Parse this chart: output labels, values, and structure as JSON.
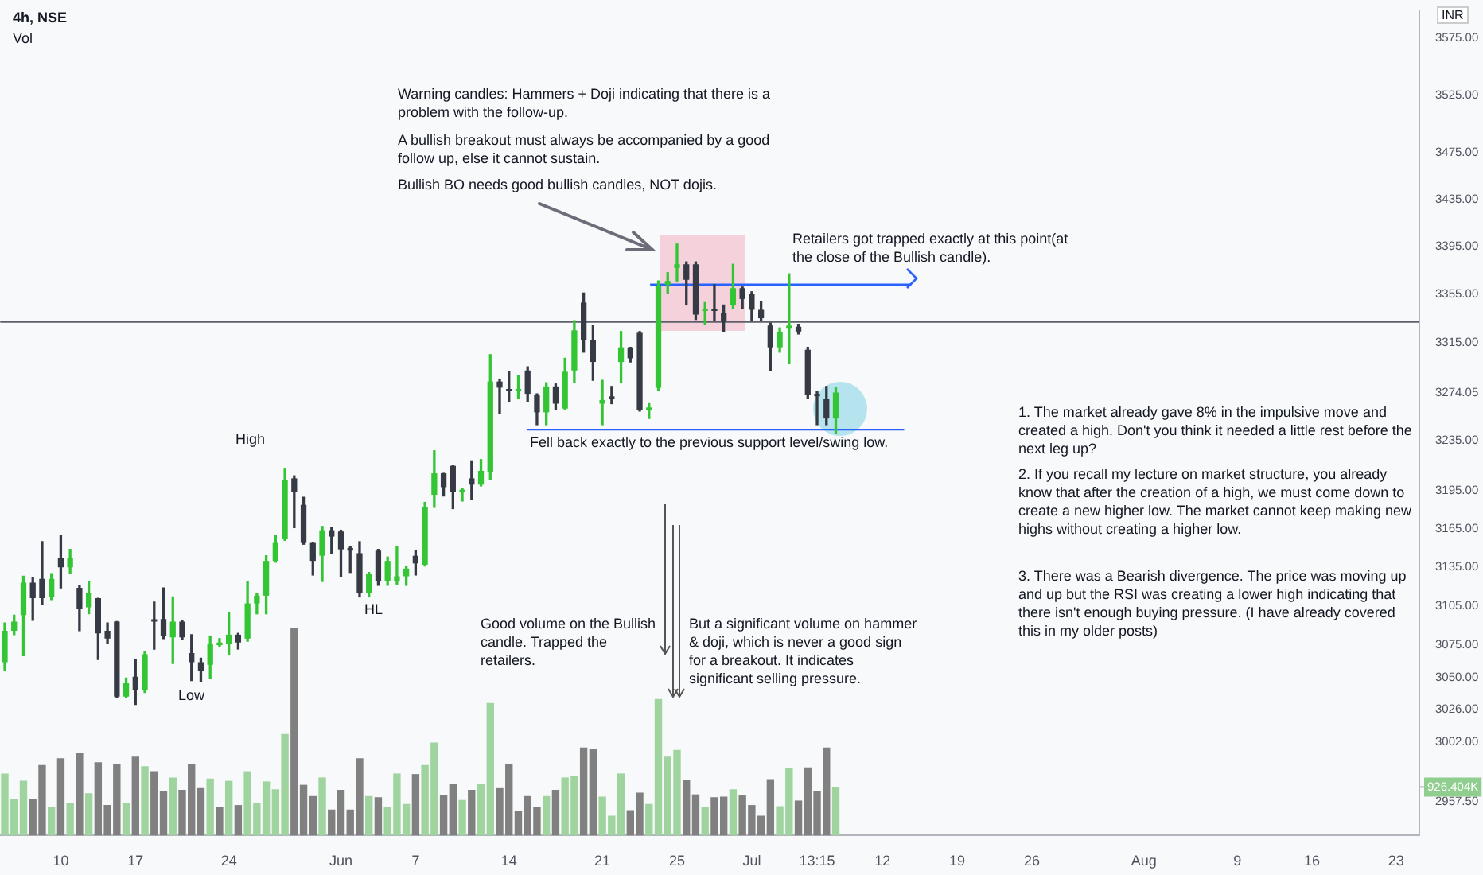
{
  "chart_data": {
    "type": "candlestick",
    "title": "4h, NSE",
    "subtitle": "Vol",
    "ylabel": "INR",
    "categories": [
      null,
      null,
      null,
      null,
      null,
      null,
      "10",
      null,
      null,
      null,
      null,
      null,
      null,
      null,
      "17",
      null,
      null,
      null,
      null,
      null,
      null,
      null,
      null,
      null,
      "24",
      null,
      null,
      null,
      null,
      null,
      null,
      null,
      null,
      null,
      null,
      null,
      "Jun",
      null,
      null,
      null,
      null,
      null,
      null,
      null,
      "7",
      null,
      null,
      null,
      null,
      null,
      null,
      null,
      null,
      null,
      "14",
      null,
      null,
      null,
      null,
      null,
      null,
      null,
      null,
      null,
      "21",
      null,
      null,
      null,
      null,
      null,
      null,
      null,
      "25",
      null,
      null,
      null,
      null,
      null,
      null,
      null,
      "Jul",
      null,
      null,
      null,
      null,
      null,
      null,
      "13:15",
      null,
      null,
      null,
      null,
      null,
      null,
      "12",
      null,
      null,
      null,
      null,
      null,
      null,
      null,
      "19",
      null,
      null,
      null,
      null,
      null,
      null,
      null,
      "26",
      null,
      null,
      null,
      null,
      null,
      null,
      null,
      null,
      null,
      null,
      null,
      "Aug",
      null,
      null,
      null,
      null,
      null,
      null,
      null,
      null,
      null,
      "9",
      null,
      null,
      null,
      null,
      null,
      null,
      null,
      "16",
      null,
      null,
      null,
      null,
      null,
      null,
      null,
      null,
      "23",
      null,
      null
    ],
    "series": [
      {
        "type": "candlestick",
        "ohlc": [
          [
            3062,
            3092,
            3056,
            3086
          ],
          [
            3086,
            3098,
            3083,
            3093
          ],
          [
            3098,
            3128,
            3067,
            3123
          ],
          [
            3123,
            3127,
            3094,
            3111
          ],
          [
            3126,
            3155,
            3106,
            3111
          ],
          [
            3112,
            3130,
            3110,
            3126
          ],
          [
            3142,
            3160,
            3119,
            3135
          ],
          [
            3135,
            3149,
            3130,
            3142
          ],
          [
            3119,
            3121,
            3086,
            3103
          ],
          [
            3104,
            3124,
            3099,
            3115
          ],
          [
            3111,
            3111,
            3064,
            3084
          ],
          [
            3086,
            3092,
            3076,
            3080
          ],
          [
            3093,
            3093,
            3035,
            3036
          ],
          [
            3036,
            3050,
            3035,
            3046
          ],
          [
            3051,
            3064,
            3030,
            3041
          ],
          [
            3041,
            3070,
            3039,
            3068
          ],
          [
            3094,
            3108,
            3072,
            3093
          ],
          [
            3095,
            3119,
            3080,
            3082
          ],
          [
            3081,
            3112,
            3061,
            3093
          ],
          [
            3093,
            3094,
            3079,
            3081
          ],
          [
            3069,
            3083,
            3048,
            3062
          ],
          [
            3062,
            3065,
            3047,
            3055
          ],
          [
            3060,
            3082,
            3050,
            3076
          ],
          [
            3075,
            3080,
            3074,
            3077
          ],
          [
            3076,
            3100,
            3068,
            3083
          ],
          [
            3083,
            3084,
            3072,
            3077
          ],
          [
            3080,
            3124,
            3078,
            3107
          ],
          [
            3107,
            3115,
            3099,
            3113
          ],
          [
            3113,
            3144,
            3099,
            3140
          ],
          [
            3140,
            3160,
            3139,
            3154
          ],
          [
            3157,
            3213,
            3156,
            3204
          ],
          [
            3205,
            3207,
            3166,
            3194
          ],
          [
            3184,
            3190,
            3153,
            3154
          ],
          [
            3154,
            3154,
            3129,
            3140
          ],
          [
            3144,
            3167,
            3124,
            3164
          ],
          [
            3164,
            3166,
            3146,
            3159
          ],
          [
            3163,
            3164,
            3128,
            3149
          ],
          [
            3150,
            3151,
            3131,
            3148
          ],
          [
            3146,
            3155,
            3112,
            3115
          ],
          [
            3115,
            3131,
            3112,
            3130
          ],
          [
            3148,
            3149,
            3121,
            3124
          ],
          [
            3124,
            3143,
            3121,
            3140
          ],
          [
            3124,
            3151,
            3122,
            3128
          ],
          [
            3128,
            3136,
            3121,
            3134
          ],
          [
            3144,
            3148,
            3129,
            3138
          ],
          [
            3137,
            3186,
            3136,
            3182
          ],
          [
            3192,
            3227,
            3182,
            3209
          ],
          [
            3209,
            3209,
            3191,
            3198
          ],
          [
            3215,
            3215,
            3181,
            3194
          ],
          [
            3194,
            3197,
            3187,
            3196
          ],
          [
            3205,
            3219,
            3188,
            3200
          ],
          [
            3200,
            3220,
            3199,
            3211
          ],
          [
            3210,
            3305,
            3204,
            3283
          ],
          [
            3283,
            3285,
            3257,
            3278
          ],
          [
            3276,
            3291,
            3267,
            3275
          ],
          [
            3275,
            3288,
            3269,
            3276
          ],
          [
            3292,
            3295,
            3267,
            3273
          ],
          [
            3272,
            3273,
            3248,
            3258
          ],
          [
            3258,
            3282,
            3248,
            3279
          ],
          [
            3279,
            3281,
            3260,
            3265
          ],
          [
            3261,
            3302,
            3260,
            3291
          ],
          [
            3292,
            3333,
            3282,
            3325
          ],
          [
            3348,
            3356,
            3307,
            3317
          ],
          [
            3317,
            3329,
            3284,
            3299
          ],
          [
            3265,
            3284,
            3248,
            3268
          ],
          [
            3270,
            3279,
            3265,
            3269
          ],
          [
            3299,
            3324,
            3282,
            3311
          ],
          [
            3311,
            3311,
            3299,
            3302
          ],
          [
            3323,
            3324,
            3259,
            3260
          ],
          [
            3260,
            3265,
            3253,
            3261
          ],
          [
            3278,
            3366,
            3276,
            3362
          ],
          [
            3363,
            3373,
            3356,
            3366
          ],
          [
            3377,
            3397,
            3366,
            3380
          ],
          [
            3380,
            3382,
            3346,
            3367
          ],
          [
            3380,
            3382,
            3334,
            3338
          ],
          [
            3341,
            3348,
            3330,
            3342
          ],
          [
            3342,
            3363,
            3333,
            3341
          ],
          [
            3339,
            3346,
            3324,
            3333
          ],
          [
            3346,
            3380,
            3343,
            3360
          ],
          [
            3360,
            3361,
            3343,
            3351
          ],
          [
            3355,
            3357,
            3333,
            3342
          ],
          [
            3342,
            3349,
            3333,
            3335
          ],
          [
            3329,
            3331,
            3292,
            3311
          ],
          [
            3311,
            3327,
            3307,
            3324
          ],
          [
            3327,
            3372,
            3298,
            3328
          ],
          [
            3328,
            3330,
            3322,
            3324
          ],
          [
            3309,
            3311,
            3269,
            3272
          ],
          [
            3273,
            3275,
            3248,
            3271
          ],
          [
            3269,
            3279,
            3248,
            3253
          ],
          [
            3253,
            3278,
            3241,
            3274.05
          ],
          null,
          null,
          null,
          null,
          null,
          null,
          null,
          null,
          null,
          null,
          null,
          null,
          null,
          null,
          null,
          null,
          null,
          null,
          null,
          null,
          null,
          null,
          null,
          null,
          null,
          null,
          null,
          null,
          null,
          null,
          null,
          null,
          null,
          null,
          null,
          null,
          null,
          null,
          null,
          null,
          null,
          null,
          null,
          null,
          null,
          null,
          null,
          null,
          null,
          null,
          null,
          null,
          null,
          null,
          null,
          null,
          null,
          null,
          null,
          null,
          null,
          null
        ],
        "colors": [
          "#33c533",
          "#33c533",
          "#33c533",
          "#363a45",
          "#363a45",
          "#33c533",
          "#363a45",
          "#33c533",
          "#363a45",
          "#33c533",
          "#363a45",
          "#363a45",
          "#363a45",
          "#33c533",
          "#363a45",
          "#33c533",
          "#363a45",
          "#363a45",
          "#33c533",
          "#363a45",
          "#363a45",
          "#363a45",
          "#33c533",
          "#33c533",
          "#33c533",
          "#363a45",
          "#33c533",
          "#33c533",
          "#33c533",
          "#33c533",
          "#33c533",
          "#363a45",
          "#363a45",
          "#363a45",
          "#33c533",
          "#363a45",
          "#363a45",
          "#363a45",
          "#363a45",
          "#33c533",
          "#363a45",
          "#33c533",
          "#33c533",
          "#33c533",
          "#363a45",
          "#33c533",
          "#33c533",
          "#363a45",
          "#363a45",
          "#33c533",
          "#363a45",
          "#33c533",
          "#33c533",
          "#363a45",
          "#363a45",
          "#33c533",
          "#363a45",
          "#363a45",
          "#33c533",
          "#363a45",
          "#33c533",
          "#33c533",
          "#363a45",
          "#363a45",
          "#33c533",
          "#363a45",
          "#33c533",
          "#363a45",
          "#363a45",
          "#33c533",
          "#33c533",
          "#33c533",
          "#33c533",
          "#363a45",
          "#363a45",
          "#33c533",
          "#363a45",
          "#363a45",
          "#33c533",
          "#363a45",
          "#363a45",
          "#363a45",
          "#363a45",
          "#33c533",
          "#33c533",
          "#363a45",
          "#363a45",
          "#363a45",
          "#363a45",
          "#33c533",
          null,
          null,
          null,
          null,
          null,
          null,
          null,
          null,
          null,
          null,
          null,
          null,
          null,
          null,
          null,
          null,
          null,
          null,
          null,
          null,
          null,
          null,
          null,
          null,
          null,
          null,
          null,
          null,
          null,
          null,
          null,
          null,
          null,
          null,
          null,
          null,
          null,
          null,
          null,
          null,
          null,
          null,
          null,
          null,
          null,
          null,
          null,
          null,
          null,
          null,
          null,
          null,
          null,
          null,
          null,
          null,
          null,
          null,
          null,
          null,
          null,
          null
        ]
      },
      {
        "type": "bar",
        "axis": "y2",
        "values": [
          1185,
          700,
          1045,
          700,
          1346,
          539,
          1476,
          625,
          1572,
          808,
          1400,
          582,
          1368,
          625,
          1508,
          1325,
          1228,
          851,
          1109,
          872,
          1357,
          905,
          1088,
          539,
          1045,
          582,
          1228,
          614,
          1034,
          883,
          1939,
          3963,
          969,
          754,
          1109,
          495,
          872,
          495,
          1476,
          754,
          732,
          539,
          1185,
          603,
          1174,
          1346,
          1777,
          775,
          991,
          679,
          872,
          991,
          2531,
          905,
          1368,
          463,
          754,
          539,
          754,
          872,
          1109,
          1142,
          1680,
          1659,
          743,
          377,
          1185,
          485,
          819,
          603,
          2606,
          1508,
          1637,
          1055,
          786,
          549,
          732,
          743,
          883,
          765,
          582,
          377,
          1077,
          560,
          1292,
          668,
          1303,
          851,
          1680,
          926.404,
          null,
          null,
          null,
          null,
          null,
          null,
          null,
          null,
          null,
          null,
          null,
          null,
          null,
          null,
          null,
          null,
          null,
          null,
          null,
          null,
          null,
          null,
          null,
          null,
          null,
          null,
          null,
          null,
          null,
          null,
          null,
          null,
          null,
          null,
          null,
          null,
          null,
          null,
          null,
          null,
          null,
          null,
          null,
          null,
          null,
          null,
          null,
          null,
          null,
          null,
          null,
          null,
          null,
          null,
          null,
          null,
          null,
          null,
          null,
          null,
          null,
          null
        ],
        "colors": [
          "#9fd49f",
          "#9fd49f",
          "#9fd49f",
          "#808080",
          "#808080",
          "#9fd49f",
          "#808080",
          "#9fd49f",
          "#808080",
          "#9fd49f",
          "#808080",
          "#808080",
          "#808080",
          "#9fd49f",
          "#808080",
          "#9fd49f",
          "#808080",
          "#808080",
          "#9fd49f",
          "#808080",
          "#808080",
          "#808080",
          "#9fd49f",
          "#808080",
          "#9fd49f",
          "#808080",
          "#9fd49f",
          "#9fd49f",
          "#9fd49f",
          "#9fd49f",
          "#9fd49f",
          "#808080",
          "#808080",
          "#808080",
          "#9fd49f",
          "#808080",
          "#808080",
          "#808080",
          "#808080",
          "#9fd49f",
          "#808080",
          "#9fd49f",
          "#9fd49f",
          "#9fd49f",
          "#808080",
          "#9fd49f",
          "#9fd49f",
          "#808080",
          "#808080",
          "#9fd49f",
          "#808080",
          "#9fd49f",
          "#9fd49f",
          "#808080",
          "#808080",
          "#808080",
          "#808080",
          "#808080",
          "#9fd49f",
          "#808080",
          "#9fd49f",
          "#9fd49f",
          "#808080",
          "#808080",
          "#9fd49f",
          "#9fd49f",
          "#9fd49f",
          "#808080",
          "#808080",
          "#9fd49f",
          "#9fd49f",
          "#9fd49f",
          "#9fd49f",
          "#808080",
          "#808080",
          "#9fd49f",
          "#808080",
          "#808080",
          "#9fd49f",
          "#808080",
          "#808080",
          "#808080",
          "#808080",
          "#9fd49f",
          "#9fd49f",
          "#808080",
          "#808080",
          "#808080",
          "#808080",
          "#9fd49f",
          null,
          null,
          null,
          null,
          null,
          null,
          null,
          null,
          null,
          null,
          null,
          null,
          null,
          null,
          null,
          null,
          null,
          null,
          null,
          null,
          null,
          null,
          null,
          null,
          null,
          null,
          null,
          null,
          null,
          null,
          null,
          null,
          null,
          null,
          null,
          null,
          null,
          null,
          null,
          null,
          null,
          null,
          null,
          null,
          null,
          null,
          null,
          null,
          null,
          null,
          null,
          null,
          null,
          null,
          null,
          null,
          null,
          null,
          null,
          null,
          null,
          null
        ]
      }
    ],
    "log": true,
    "ylim": [
      2933,
      3600
    ],
    "yticks": [
      {
        "value": 3575,
        "label": "3575.00"
      },
      {
        "value": 3525,
        "label": "3525.00"
      },
      {
        "value": 3475,
        "label": "3475.00"
      },
      {
        "value": 3435,
        "label": "3435.00"
      },
      {
        "value": 3395,
        "label": "3395.00"
      },
      {
        "value": 3355,
        "label": "3355.00"
      },
      {
        "value": 3315,
        "label": "3315.00"
      },
      {
        "value": 3274.05,
        "label": "3274.05"
      },
      {
        "value": 3235,
        "label": "3235.00"
      },
      {
        "value": 3195,
        "label": "3195.00"
      },
      {
        "value": 3165,
        "label": "3165.00"
      },
      {
        "value": 3135,
        "label": "3135.00"
      },
      {
        "value": 3105,
        "label": "3105.00"
      },
      {
        "value": 3075,
        "label": "3075.00"
      },
      {
        "value": 3050,
        "label": "3050.00"
      },
      {
        "value": 3026,
        "label": "3026.00"
      },
      {
        "value": 3002,
        "label": "3002.00"
      },
      {
        "value": 2957.5,
        "label": "2957.50"
      }
    ],
    "y2lim": [
      0,
      15760
    ],
    "y2ticks": [
      {
        "value": 926.404,
        "label": "926.404K"
      }
    ],
    "grid": false,
    "legend": false,
    "ref_lines": [
      {
        "axis": "y",
        "value": 3332,
        "color": "#5d606b"
      },
      {
        "axis": "y",
        "value": 3363,
        "color": "#2962ff"
      },
      {
        "axis": "y",
        "value": 3244,
        "color": "#2962ff"
      }
    ],
    "annotations": [
      "Warning candles: Hammers + Doji indicating that there is a problem with the follow-up.",
      "A bullish breakout must always be accompanied by a good follow up, else it cannot sustain.",
      "Bullish BO needs good bullish candles, NOT dojis.",
      "Retailers got trapped exactly at this point(at the close of the Bullish candle).",
      {
        "text": "Fell back exactly to the previous support level/swing low.",
        "y": 3244
      },
      "High",
      {
        "text": "HL",
        "y": 3112
      },
      "Low",
      "Good volume on the Bullish candle. Trapped the retailers.",
      "But a significant volume on hammer & doji, which is never a good sign for a breakout. It indicates significant selling pressure.",
      "1. The market already gave 8% in the impulsive move and created a high. Don't you think it needed a little rest before the next leg up?",
      "2. If you recall my lecture on market structure, you already know that after the creation of a high, we must come down to create a new higher low. The market cannot keep making new highs without creating a higher low.",
      "3. There was a Bearish divergence. The price was moving up and up but the RSI was creating a lower high indicating that there isn't enough buying pressure. (I have already covered this in my older posts)"
    ]
  }
}
